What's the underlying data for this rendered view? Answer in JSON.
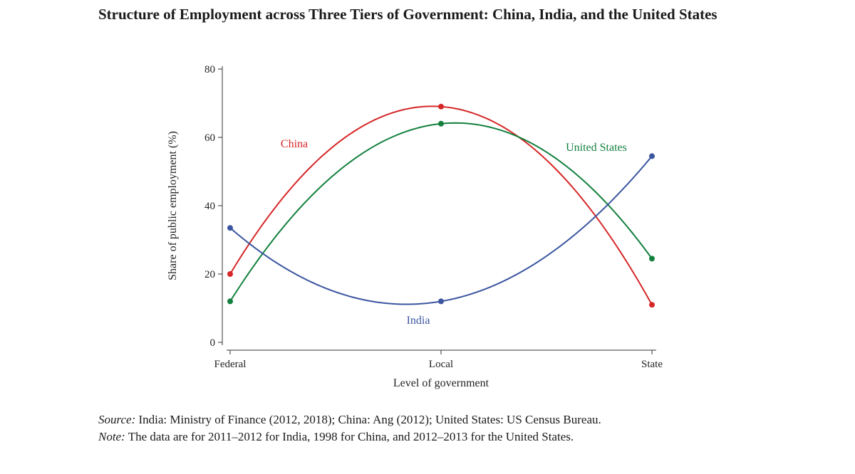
{
  "chart_data": {
    "type": "line",
    "title": "Structure of Employment across Three Tiers of Government: China, India, and the United States",
    "xlabel": "Level of government",
    "ylabel": "Share of public employment (%)",
    "categories": [
      "Federal",
      "Local",
      "State"
    ],
    "ylim": [
      0,
      80
    ],
    "yticks": [
      0,
      20,
      40,
      60,
      80
    ],
    "grid": false,
    "series": [
      {
        "name": "China",
        "values": [
          20,
          69,
          11
        ],
        "color": "#d62728"
      },
      {
        "name": "United States",
        "values": [
          12,
          64,
          24.5
        ],
        "color": "#13803e"
      },
      {
        "name": "India",
        "values": [
          33.5,
          12,
          54.5
        ],
        "color": "#3b55a0"
      }
    ]
  },
  "notes": {
    "source_label": "Source:",
    "source_text": " India: Ministry of Finance (2012, 2018); China: Ang (2012); United States: US Census Bureau.",
    "note_label": "Note:",
    "note_text": " The data are for 2011–2012 for India, 1998 for China, and 2012–2013 for the United States."
  }
}
